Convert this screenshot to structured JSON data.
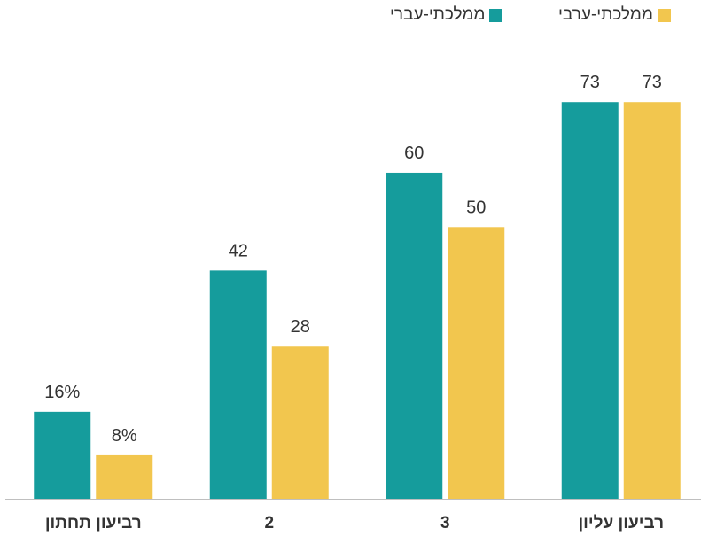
{
  "chart_data": {
    "type": "bar",
    "categories": [
      "רביעון תחתון",
      "2",
      "3",
      "רביעון עליון"
    ],
    "series": [
      {
        "name": "ממלכתי-עברי",
        "values": [
          16,
          42,
          60,
          73
        ],
        "color": "#159c9c"
      },
      {
        "name": "ממלכתי-ערבי",
        "values": [
          8,
          28,
          50,
          73
        ],
        "color": "#f2c64e"
      }
    ],
    "data_labels": [
      [
        "16%",
        "42",
        "60",
        "73"
      ],
      [
        "8%",
        "28",
        "50",
        "73"
      ]
    ],
    "ylim": [
      0,
      82
    ],
    "grid": false,
    "legend_position": "top-right",
    "title": "",
    "xlabel": "",
    "ylabel": ""
  }
}
